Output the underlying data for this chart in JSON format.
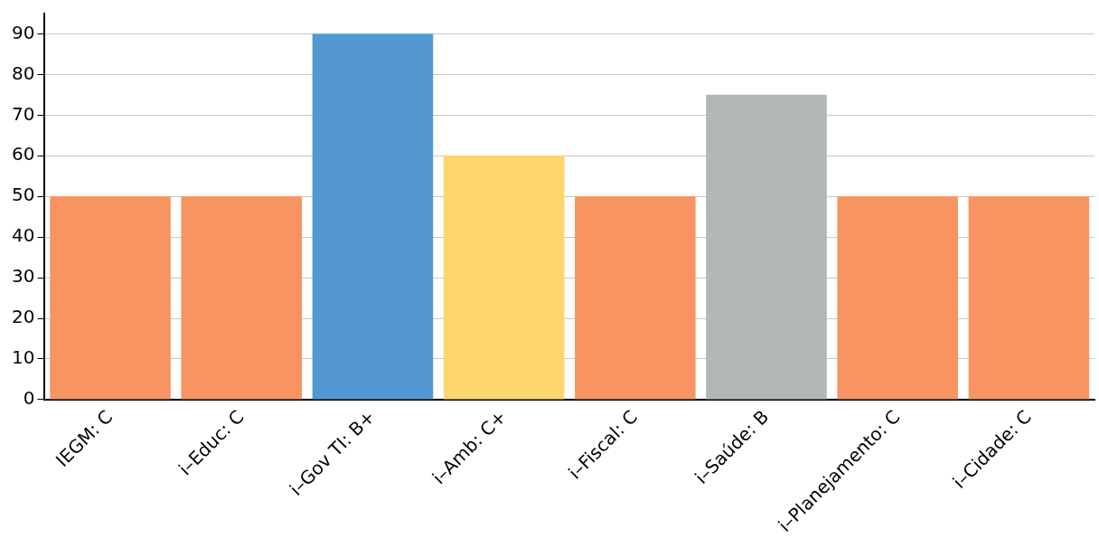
{
  "chart_data": {
    "type": "bar",
    "categories": [
      "IEGM: C",
      "i–Educ: C",
      "i–Gov TI: B+",
      "i–Amb: C+",
      "i–Fiscal: C",
      "i–Saúde: B",
      "i–Planejamento: C",
      "i–Cidade: C"
    ],
    "values": [
      50,
      50,
      90,
      60,
      50,
      75,
      50,
      50
    ],
    "colors": [
      "#f79461",
      "#f79461",
      "#5398d3",
      "#fcd56b",
      "#f79461",
      "#b3b7b7",
      "#f79461",
      "#f79461"
    ],
    "ylim": [
      0,
      95
    ],
    "yticks": [
      0,
      10,
      20,
      30,
      40,
      50,
      60,
      70,
      80,
      90
    ],
    "grid": "y",
    "legend": false
  }
}
